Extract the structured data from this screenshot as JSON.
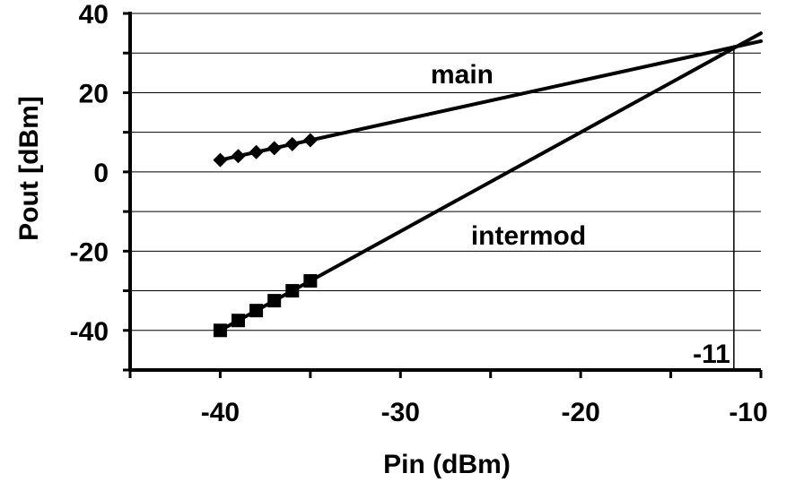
{
  "chart_data": {
    "type": "line",
    "title": "",
    "xlabel": "Pin (dBm)",
    "ylabel": "Pout [dBm]",
    "xlim": [
      -45,
      -10
    ],
    "ylim": [
      -50,
      40
    ],
    "x_ticks": [
      -40,
      -30,
      -20,
      -10
    ],
    "y_ticks": [
      -40,
      -20,
      0,
      20,
      40
    ],
    "y_minor_step": 10,
    "grid": "horizontal",
    "series": [
      {
        "name": "main",
        "line_x": [
          -40,
          -10
        ],
        "line_y": [
          3,
          33
        ],
        "marker": "diamond",
        "markers_x": [
          -40,
          -39,
          -38,
          -37,
          -36,
          -35
        ],
        "markers_y": [
          3,
          4,
          5,
          6,
          7,
          8
        ]
      },
      {
        "name": "intermod",
        "line_x": [
          -40,
          -10
        ],
        "line_y": [
          -40,
          35
        ],
        "marker": "square",
        "markers_x": [
          -40,
          -39,
          -38,
          -37,
          -36,
          -35
        ],
        "markers_y": [
          -40,
          -37.5,
          -35,
          -32.5,
          -30,
          -27.5
        ]
      }
    ],
    "annotations": [
      {
        "text": "-11",
        "x": -11.5
      }
    ]
  }
}
